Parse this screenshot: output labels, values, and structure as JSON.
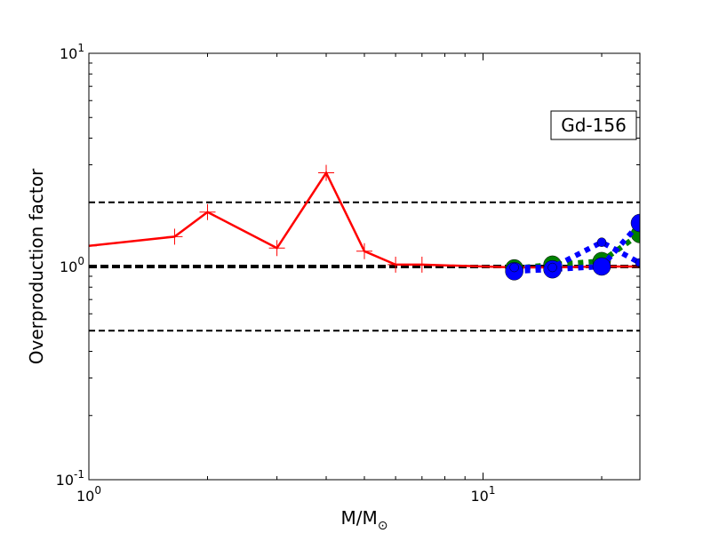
{
  "chart_data": {
    "type": "line",
    "title": "",
    "xlabel": "M/M⊙",
    "ylabel": "Overproduction factor",
    "xscale": "log",
    "yscale": "log",
    "xlim": [
      1,
      25
    ],
    "ylim": [
      0.1,
      10
    ],
    "grid": false,
    "xticks": [
      {
        "value": 1,
        "base": "10",
        "exp": "0"
      },
      {
        "value": 10,
        "base": "10",
        "exp": "1"
      }
    ],
    "yticks": [
      {
        "value": 0.1,
        "base": "10",
        "exp": "-1"
      },
      {
        "value": 1,
        "base": "10",
        "exp": "0"
      },
      {
        "value": 10,
        "base": "10",
        "exp": "1"
      }
    ],
    "reference_lines": [
      {
        "y": 2.0,
        "style": "dashed",
        "weight": "thin",
        "color": "#000000"
      },
      {
        "y": 1.0,
        "style": "dashed",
        "weight": "thick",
        "color": "#000000"
      },
      {
        "y": 0.5,
        "style": "dashed",
        "weight": "thin",
        "color": "#000000"
      }
    ],
    "annotation": {
      "text": "Gd-156",
      "position": "upper-right"
    },
    "series": [
      {
        "color": "#ff0000",
        "style": "solid",
        "marker": "plus",
        "x": [
          1,
          1.65,
          2,
          3,
          4,
          5,
          6,
          7,
          12,
          15,
          20,
          25
        ],
        "y": [
          1.25,
          1.38,
          1.8,
          1.22,
          2.75,
          1.18,
          1.02,
          1.02,
          0.99,
          0.99,
          1.0,
          1.0
        ]
      },
      {
        "color": "#008000",
        "style": "dotted",
        "marker": "circle",
        "x": [
          12,
          15,
          20,
          25
        ],
        "y": [
          0.98,
          1.02,
          1.06,
          1.42
        ]
      },
      {
        "color": "#0000ff",
        "style": "dotted",
        "marker": "circle",
        "x": [
          12,
          15,
          20,
          25
        ],
        "y": [
          0.95,
          0.97,
          1.0,
          1.6
        ]
      },
      {
        "color": "#0000ff",
        "style": "dotted",
        "marker": "small-circle",
        "x": [
          12,
          15,
          20,
          25
        ],
        "y": [
          0.99,
          0.99,
          1.3,
          1.04
        ]
      }
    ]
  }
}
